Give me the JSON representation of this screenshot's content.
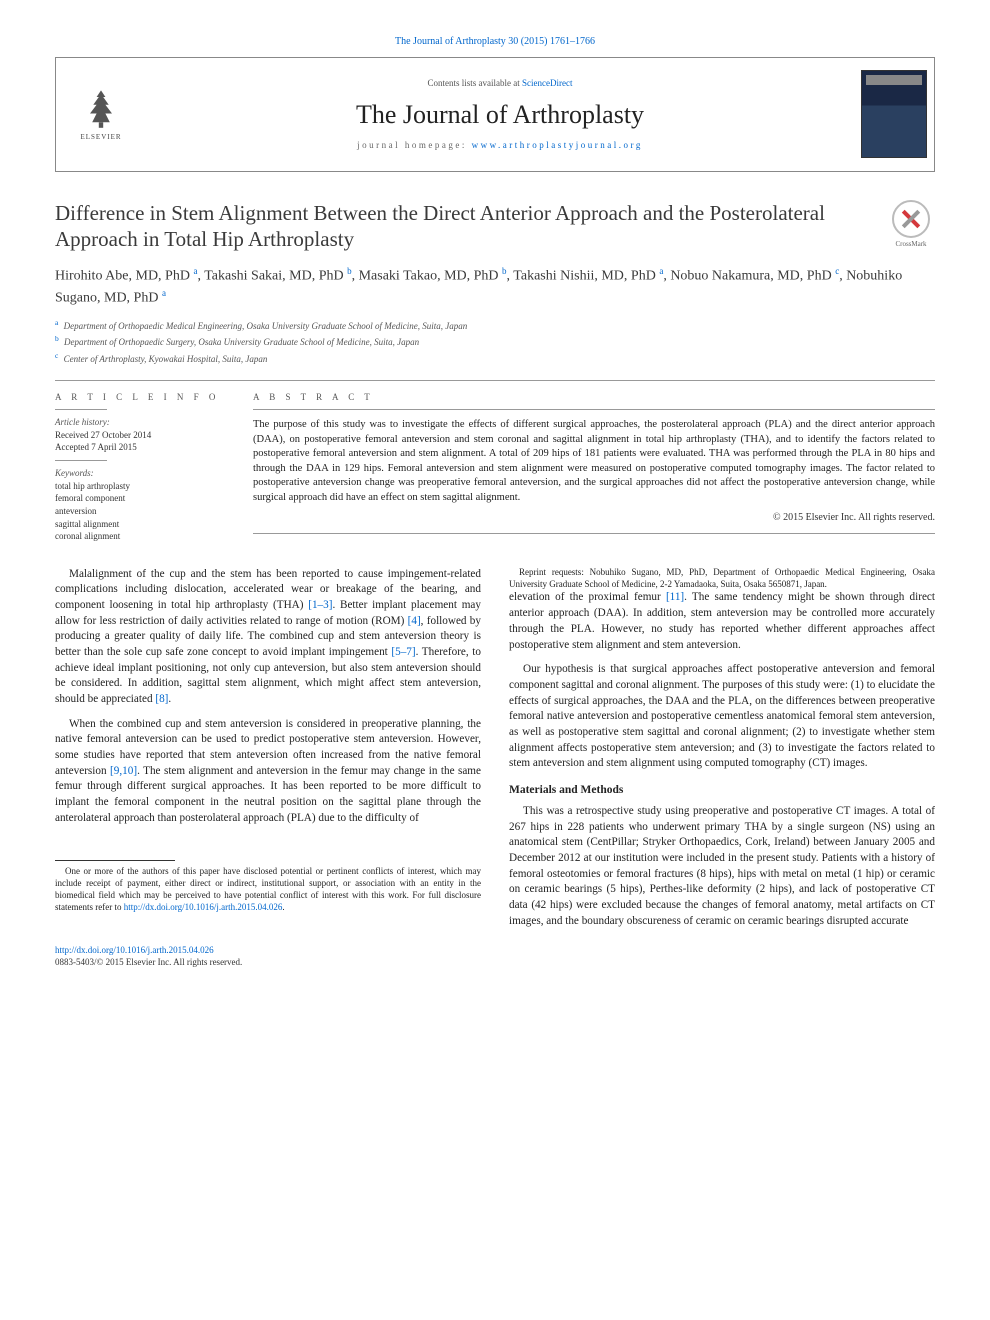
{
  "citation": "The Journal of Arthroplasty 30 (2015) 1761–1766",
  "header": {
    "contents_prefix": "Contents lists available at ",
    "contents_link": "ScienceDirect",
    "journal": "The Journal of Arthroplasty",
    "homepage_prefix": "journal homepage: ",
    "homepage_link": "www.arthroplastyjournal.org",
    "publisher": "ELSEVIER"
  },
  "title": "Difference in Stem Alignment Between the Direct Anterior Approach and the Posterolateral Approach in Total Hip Arthroplasty",
  "crossmark_label": "CrossMark",
  "authors_html": "Hirohito Abe, MD, PhD |a|, Takashi Sakai, MD, PhD |b|, Masaki Takao, MD, PhD |b|, Takashi Nishii, MD, PhD |a|, Nobuo Nakamura, MD, PhD |c|, Nobuhiko Sugano, MD, PhD |a|",
  "affiliations": [
    {
      "sup": "a",
      "text": "Department of Orthopaedic Medical Engineering, Osaka University Graduate School of Medicine, Suita, Japan"
    },
    {
      "sup": "b",
      "text": "Department of Orthopaedic Surgery, Osaka University Graduate School of Medicine, Suita, Japan"
    },
    {
      "sup": "c",
      "text": "Center of Arthroplasty, Kyowakai Hospital, Suita, Japan"
    }
  ],
  "info": {
    "heading": "A R T I C L E   I N F O",
    "history_label": "Article history:",
    "received": "Received 27 October 2014",
    "accepted": "Accepted 7 April 2015",
    "keywords_label": "Keywords:",
    "keywords": [
      "total hip arthroplasty",
      "femoral component",
      "anteversion",
      "sagittal alignment",
      "coronal alignment"
    ]
  },
  "abstract": {
    "heading": "A B S T R A C T",
    "text": "The purpose of this study was to investigate the effects of different surgical approaches, the posterolateral approach (PLA) and the direct anterior approach (DAA), on postoperative femoral anteversion and stem coronal and sagittal alignment in total hip arthroplasty (THA), and to identify the factors related to postoperative femoral anteversion and stem alignment. A total of 209 hips of 181 patients were evaluated. THA was performed through the PLA in 80 hips and through the DAA in 129 hips. Femoral anteversion and stem alignment were measured on postoperative computed tomography images. The factor related to postoperative anteversion change was preoperative femoral anteversion, and the surgical approaches did not affect the postoperative anteversion change, while surgical approach did have an effect on stem sagittal alignment.",
    "copyright": "© 2015 Elsevier Inc. All rights reserved."
  },
  "body": {
    "p1a": "Malalignment of the cup and the stem has been reported to cause impingement-related complications including dislocation, accelerated wear or breakage of the bearing, and component loosening in total hip arthroplasty (THA) ",
    "p1_ref1": "[1–3]",
    "p1b": ". Better implant placement may allow for less restriction of daily activities related to range of motion (ROM) ",
    "p1_ref2": "[4]",
    "p1c": ", followed by producing a greater quality of daily life. The combined cup and stem anteversion theory is better than the sole cup safe zone concept to avoid implant impingement ",
    "p1_ref3": "[5–7]",
    "p1d": ". Therefore, to achieve ideal implant positioning, not only cup anteversion, but also stem anteversion should be considered. In addition, sagittal stem alignment, which might affect stem anteversion, should be appreciated ",
    "p1_ref4": "[8]",
    "p1e": ".",
    "p2a": "When the combined cup and stem anteversion is considered in preoperative planning, the native femoral anteversion can be used to predict postoperative stem anteversion. However, some studies have reported that stem anteversion often increased from the native femoral anteversion ",
    "p2_ref1": "[9,10]",
    "p2b": ". The stem alignment and anteversion in the femur may change in the same femur through different surgical approaches. It has been reported to be more difficult to implant the femoral component in the neutral position on the sagittal plane through the anterolateral approach than posterolateral approach (PLA) due to the difficulty of",
    "p3a": "elevation of the proximal femur ",
    "p3_ref1": "[11]",
    "p3b": ". The same tendency might be shown through direct anterior approach (DAA). In addition, stem anteversion may be controlled more accurately through the PLA. However, no study has reported whether different approaches affect postoperative stem alignment and stem anteversion.",
    "p4": "Our hypothesis is that surgical approaches affect postoperative anteversion and femoral component sagittal and coronal alignment. The purposes of this study were: (1) to elucidate the effects of surgical approaches, the DAA and the PLA, on the differences between preoperative femoral native anteversion and postoperative cementless anatomical femoral stem anteversion, as well as postoperative stem sagittal and coronal alignment; (2) to investigate whether stem alignment affects postoperative stem anteversion; and (3) to investigate the factors related to stem anteversion and stem alignment using computed tomography (CT) images.",
    "section_heading": "Materials and Methods",
    "p5": "This was a retrospective study using preoperative and postoperative CT images. A total of 267 hips in 228 patients who underwent primary THA by a single surgeon (NS) using an anatomical stem (CentPillar; Stryker Orthopaedics, Cork, Ireland) between January 2005 and December 2012 at our institution were included in the present study. Patients with a history of femoral osteotomies or femoral fractures (8 hips), hips with metal on metal (1 hip) or ceramic on ceramic bearings (5 hips), Perthes-like deformity (2 hips), and lack of postoperative CT data (42 hips) were excluded because the changes of femoral anatomy, metal artifacts on CT images, and the boundary obscureness of ceramic on ceramic bearings disrupted accurate"
  },
  "footnotes": {
    "conflict": "One or more of the authors of this paper have disclosed potential or pertinent conflicts of interest, which may include receipt of payment, either direct or indirect, institutional support, or association with an entity in the biomedical field which may be perceived to have potential conflict of interest with this work. For full disclosure statements refer to ",
    "conflict_link": "http://dx.doi.org/10.1016/j.arth.2015.04.026",
    "conflict_end": ".",
    "reprint": "Reprint requests: Nobuhiko Sugano, MD, PhD, Department of Orthopaedic Medical Engineering, Osaka University Graduate School of Medicine, 2-2 Yamadaoka, Suita, Osaka 5650871, Japan."
  },
  "bottom": {
    "doi": "http://dx.doi.org/10.1016/j.arth.2015.04.026",
    "issn": "0883-5403/© 2015 Elsevier Inc. All rights reserved."
  },
  "colors": {
    "link": "#0066cc",
    "text": "#222222",
    "muted": "#555555",
    "rule": "#999999",
    "crossmark_red": "#d4393c"
  }
}
